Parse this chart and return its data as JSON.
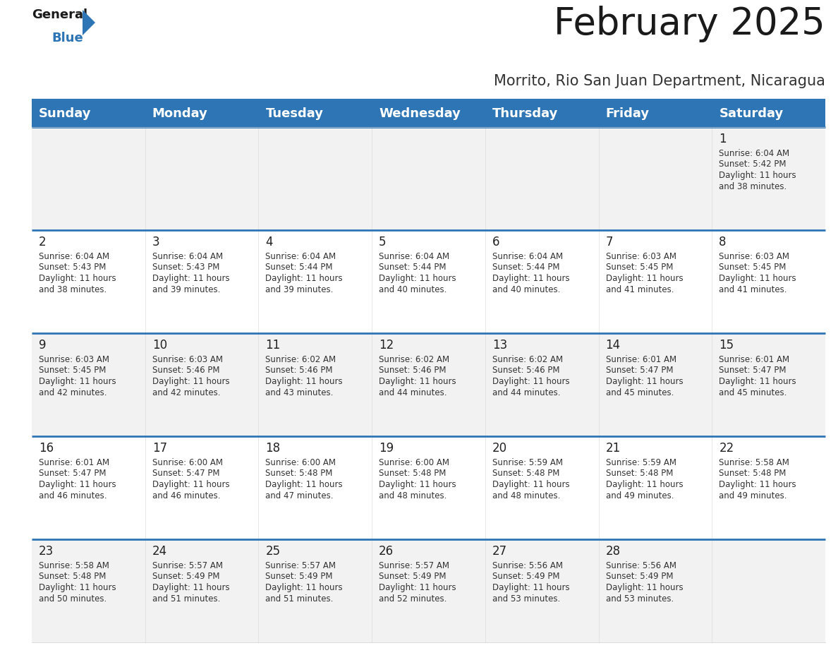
{
  "title": "February 2025",
  "subtitle": "Morrito, Rio San Juan Department, Nicaragua",
  "header_bg": "#2E75B6",
  "header_text_color": "#FFFFFF",
  "cell_bg_odd": "#F2F2F2",
  "cell_bg_even": "#FFFFFF",
  "day_names": [
    "Sunday",
    "Monday",
    "Tuesday",
    "Wednesday",
    "Thursday",
    "Friday",
    "Saturday"
  ],
  "title_fontsize": 38,
  "subtitle_fontsize": 15,
  "header_fontsize": 13,
  "day_num_fontsize": 12,
  "cell_text_fontsize": 8.5,
  "calendar": [
    [
      {
        "day": 0
      },
      {
        "day": 0
      },
      {
        "day": 0
      },
      {
        "day": 0
      },
      {
        "day": 0
      },
      {
        "day": 0
      },
      {
        "day": 1,
        "sunrise": "6:04 AM",
        "sunset": "5:42 PM",
        "daylight_h": "11 hours",
        "daylight_m": "and 38 minutes."
      }
    ],
    [
      {
        "day": 2,
        "sunrise": "6:04 AM",
        "sunset": "5:43 PM",
        "daylight_h": "11 hours",
        "daylight_m": "and 38 minutes."
      },
      {
        "day": 3,
        "sunrise": "6:04 AM",
        "sunset": "5:43 PM",
        "daylight_h": "11 hours",
        "daylight_m": "and 39 minutes."
      },
      {
        "day": 4,
        "sunrise": "6:04 AM",
        "sunset": "5:44 PM",
        "daylight_h": "11 hours",
        "daylight_m": "and 39 minutes."
      },
      {
        "day": 5,
        "sunrise": "6:04 AM",
        "sunset": "5:44 PM",
        "daylight_h": "11 hours",
        "daylight_m": "and 40 minutes."
      },
      {
        "day": 6,
        "sunrise": "6:04 AM",
        "sunset": "5:44 PM",
        "daylight_h": "11 hours",
        "daylight_m": "and 40 minutes."
      },
      {
        "day": 7,
        "sunrise": "6:03 AM",
        "sunset": "5:45 PM",
        "daylight_h": "11 hours",
        "daylight_m": "and 41 minutes."
      },
      {
        "day": 8,
        "sunrise": "6:03 AM",
        "sunset": "5:45 PM",
        "daylight_h": "11 hours",
        "daylight_m": "and 41 minutes."
      }
    ],
    [
      {
        "day": 9,
        "sunrise": "6:03 AM",
        "sunset": "5:45 PM",
        "daylight_h": "11 hours",
        "daylight_m": "and 42 minutes."
      },
      {
        "day": 10,
        "sunrise": "6:03 AM",
        "sunset": "5:46 PM",
        "daylight_h": "11 hours",
        "daylight_m": "and 42 minutes."
      },
      {
        "day": 11,
        "sunrise": "6:02 AM",
        "sunset": "5:46 PM",
        "daylight_h": "11 hours",
        "daylight_m": "and 43 minutes."
      },
      {
        "day": 12,
        "sunrise": "6:02 AM",
        "sunset": "5:46 PM",
        "daylight_h": "11 hours",
        "daylight_m": "and 44 minutes."
      },
      {
        "day": 13,
        "sunrise": "6:02 AM",
        "sunset": "5:46 PM",
        "daylight_h": "11 hours",
        "daylight_m": "and 44 minutes."
      },
      {
        "day": 14,
        "sunrise": "6:01 AM",
        "sunset": "5:47 PM",
        "daylight_h": "11 hours",
        "daylight_m": "and 45 minutes."
      },
      {
        "day": 15,
        "sunrise": "6:01 AM",
        "sunset": "5:47 PM",
        "daylight_h": "11 hours",
        "daylight_m": "and 45 minutes."
      }
    ],
    [
      {
        "day": 16,
        "sunrise": "6:01 AM",
        "sunset": "5:47 PM",
        "daylight_h": "11 hours",
        "daylight_m": "and 46 minutes."
      },
      {
        "day": 17,
        "sunrise": "6:00 AM",
        "sunset": "5:47 PM",
        "daylight_h": "11 hours",
        "daylight_m": "and 46 minutes."
      },
      {
        "day": 18,
        "sunrise": "6:00 AM",
        "sunset": "5:48 PM",
        "daylight_h": "11 hours",
        "daylight_m": "and 47 minutes."
      },
      {
        "day": 19,
        "sunrise": "6:00 AM",
        "sunset": "5:48 PM",
        "daylight_h": "11 hours",
        "daylight_m": "and 48 minutes."
      },
      {
        "day": 20,
        "sunrise": "5:59 AM",
        "sunset": "5:48 PM",
        "daylight_h": "11 hours",
        "daylight_m": "and 48 minutes."
      },
      {
        "day": 21,
        "sunrise": "5:59 AM",
        "sunset": "5:48 PM",
        "daylight_h": "11 hours",
        "daylight_m": "and 49 minutes."
      },
      {
        "day": 22,
        "sunrise": "5:58 AM",
        "sunset": "5:48 PM",
        "daylight_h": "11 hours",
        "daylight_m": "and 49 minutes."
      }
    ],
    [
      {
        "day": 23,
        "sunrise": "5:58 AM",
        "sunset": "5:48 PM",
        "daylight_h": "11 hours",
        "daylight_m": "and 50 minutes."
      },
      {
        "day": 24,
        "sunrise": "5:57 AM",
        "sunset": "5:49 PM",
        "daylight_h": "11 hours",
        "daylight_m": "and 51 minutes."
      },
      {
        "day": 25,
        "sunrise": "5:57 AM",
        "sunset": "5:49 PM",
        "daylight_h": "11 hours",
        "daylight_m": "and 51 minutes."
      },
      {
        "day": 26,
        "sunrise": "5:57 AM",
        "sunset": "5:49 PM",
        "daylight_h": "11 hours",
        "daylight_m": "and 52 minutes."
      },
      {
        "day": 27,
        "sunrise": "5:56 AM",
        "sunset": "5:49 PM",
        "daylight_h": "11 hours",
        "daylight_m": "and 53 minutes."
      },
      {
        "day": 28,
        "sunrise": "5:56 AM",
        "sunset": "5:49 PM",
        "daylight_h": "11 hours",
        "daylight_m": "and 53 minutes."
      },
      {
        "day": 0
      }
    ]
  ]
}
